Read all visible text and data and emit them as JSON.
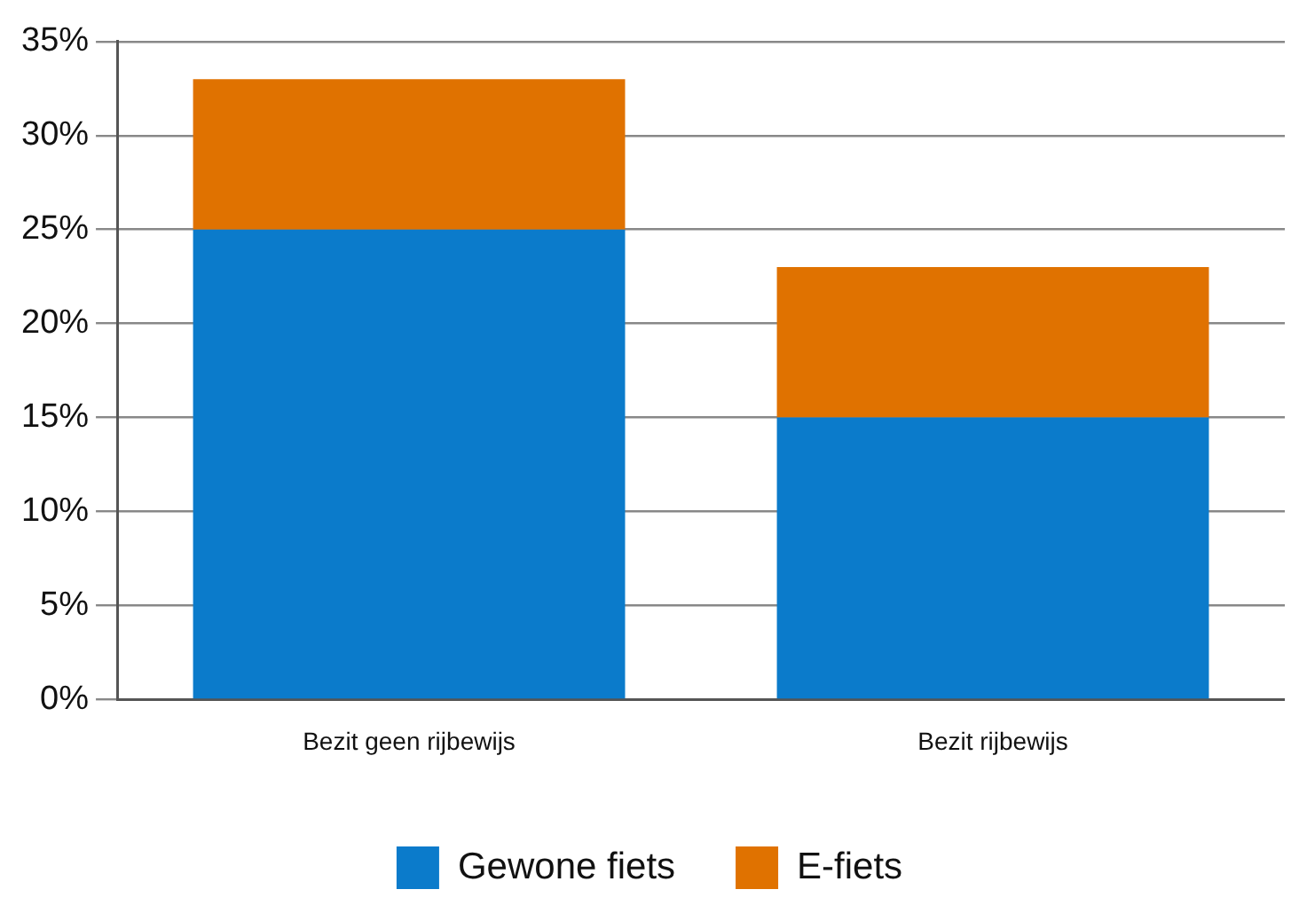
{
  "chart_data": {
    "type": "bar",
    "stacked": true,
    "categories": [
      "Bezit geen rijbewijs",
      "Bezit rijbewijs"
    ],
    "series": [
      {
        "name": "Gewone fiets",
        "color": "#0b7bcb",
        "values": [
          25,
          15
        ]
      },
      {
        "name": "E-fiets",
        "color": "#e07200",
        "values": [
          8,
          8
        ]
      }
    ],
    "ylim": [
      0,
      35
    ],
    "yticks": [
      {
        "value": 0,
        "label": "0%"
      },
      {
        "value": 5,
        "label": "5%"
      },
      {
        "value": 10,
        "label": "10%"
      },
      {
        "value": 15,
        "label": "15%"
      },
      {
        "value": 20,
        "label": "20%"
      },
      {
        "value": 25,
        "label": "25%"
      },
      {
        "value": 30,
        "label": "30%"
      },
      {
        "value": 35,
        "label": "35%"
      }
    ],
    "grid": "y",
    "legend": "bottom"
  }
}
